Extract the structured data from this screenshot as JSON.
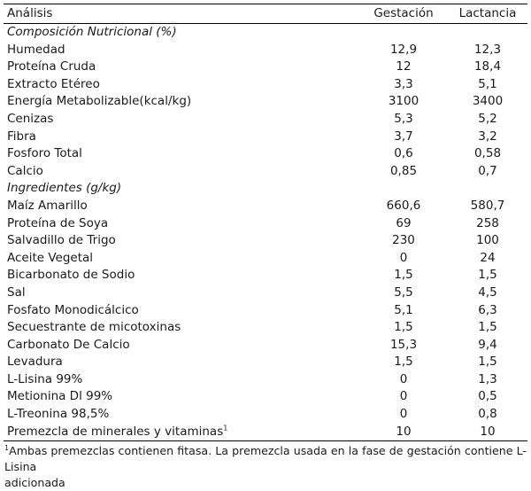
{
  "header": {
    "col_label": "Análisis",
    "col_gestacion": "Gestación",
    "col_lactancia": "Lactancia"
  },
  "section_composicion": {
    "title": "Composición Nutricional (%)",
    "rows": [
      {
        "label": "Humedad",
        "gestacion": "12,9",
        "lactancia": "12,3"
      },
      {
        "label": "Proteína Cruda",
        "gestacion": "12",
        "lactancia": "18,4"
      },
      {
        "label": "Extracto Etéreo",
        "gestacion": "3,3",
        "lactancia": "5,1"
      },
      {
        "label": "Energía Metabolizable(kcal/kg)",
        "gestacion": "3100",
        "lactancia": "3400"
      },
      {
        "label": "Cenizas",
        "gestacion": "5,3",
        "lactancia": "5,2"
      },
      {
        "label": "Fibra",
        "gestacion": "3,7",
        "lactancia": "3,2"
      },
      {
        "label": "Fosforo Total",
        "gestacion": "0,6",
        "lactancia": "0,58"
      },
      {
        "label": "Calcio",
        "gestacion": "0,85",
        "lactancia": "0,7"
      }
    ]
  },
  "section_ingredientes": {
    "title": "Ingredientes (g/kg)",
    "rows": [
      {
        "label": "Maíz Amarillo",
        "gestacion": "660,6",
        "lactancia": "580,7"
      },
      {
        "label": "Proteína de Soya",
        "gestacion": "69",
        "lactancia": "258"
      },
      {
        "label": "Salvadillo de Trigo",
        "gestacion": "230",
        "lactancia": "100"
      },
      {
        "label": "Aceite Vegetal",
        "gestacion": "0",
        "lactancia": "24"
      },
      {
        "label": "Bicarbonato de Sodio",
        "gestacion": "1,5",
        "lactancia": "1,5"
      },
      {
        "label": "Sal",
        "gestacion": "5,5",
        "lactancia": "4,5"
      },
      {
        "label": "Fosfato Monodicálcico",
        "gestacion": "5,1",
        "lactancia": "6,3"
      },
      {
        "label": "Secuestrante de micotoxinas",
        "gestacion": "1,5",
        "lactancia": "1,5"
      },
      {
        "label": "Carbonato De Calcio",
        "gestacion": "15,3",
        "lactancia": "9,4"
      },
      {
        "label": "Levadura",
        "gestacion": "1,5",
        "lactancia": "1,5"
      },
      {
        "label": "L-Lisina 99%",
        "gestacion": "0",
        "lactancia": "1,3"
      },
      {
        "label": "Metionina Dl 99%",
        "gestacion": "0",
        "lactancia": "0,5"
      },
      {
        "label": "L-Treonina 98,5%",
        "gestacion": "0",
        "lactancia": "0,8"
      },
      {
        "label": "Premezcla de minerales y vitaminas",
        "label_sup": "1",
        "gestacion": "10",
        "lactancia": "10"
      }
    ]
  },
  "footnote": {
    "marker": "1",
    "line1": "Ambas premezclas contienen fitasa. La premezcla usada en la fase de gestación contiene L-Lisina",
    "line2": "adicionada"
  }
}
